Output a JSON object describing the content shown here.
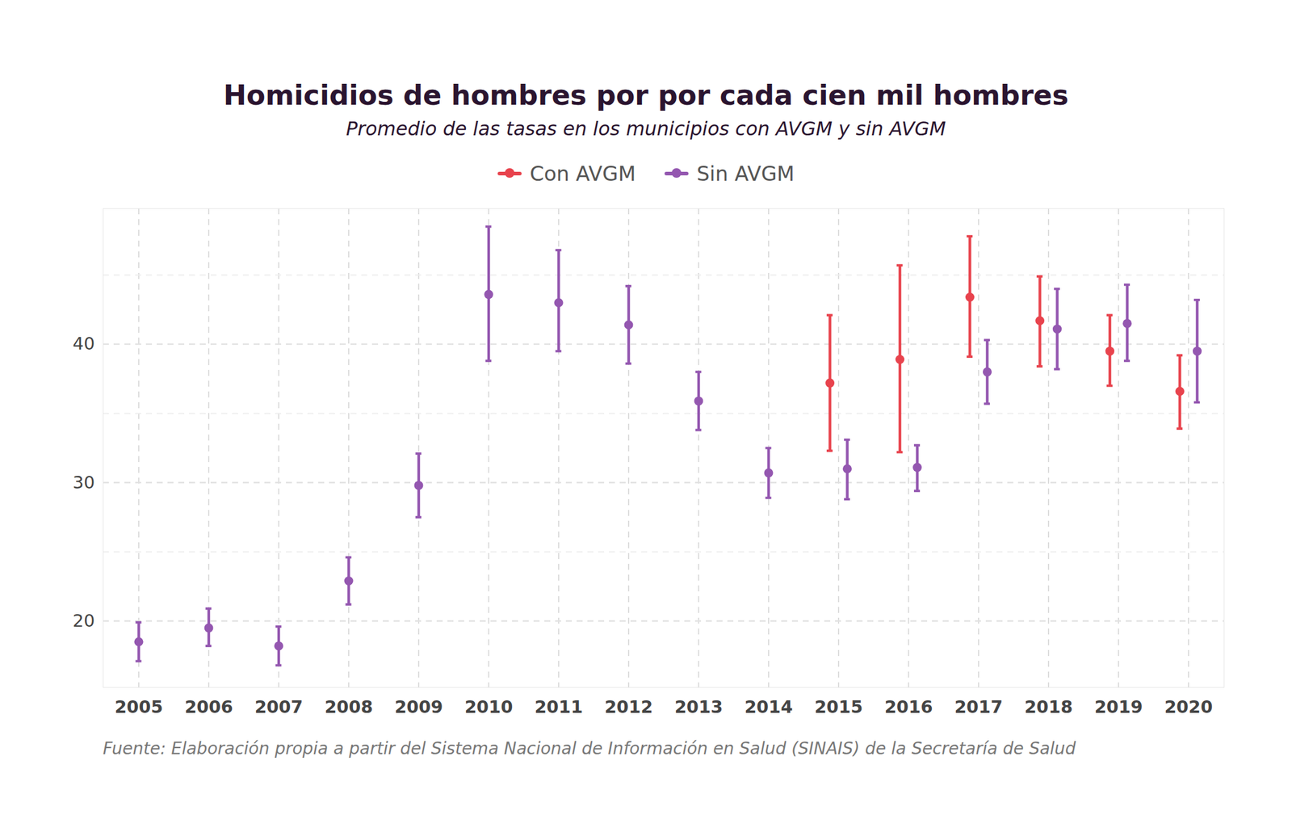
{
  "chart_data": {
    "type": "errorbar",
    "title": "Homicidios de hombres por por cada cien mil hombres",
    "subtitle": "Promedio de las tasas en los municipios con AVGM y sin AVGM",
    "caption": "Fuente: Elaboración propia a partir del Sistema Nacional de Información en Salud (SINAIS) de la Secretaría de Salud",
    "categories": [
      "2005",
      "2006",
      "2007",
      "2008",
      "2009",
      "2010",
      "2011",
      "2012",
      "2013",
      "2014",
      "2015",
      "2016",
      "2017",
      "2018",
      "2019",
      "2020"
    ],
    "series": [
      {
        "name": "Con AVGM",
        "color": "#e8434d",
        "values": [
          null,
          null,
          null,
          null,
          null,
          null,
          null,
          null,
          null,
          null,
          37.2,
          38.9,
          43.4,
          41.7,
          39.5,
          36.6
        ],
        "lower": [
          null,
          null,
          null,
          null,
          null,
          null,
          null,
          null,
          null,
          null,
          32.3,
          32.2,
          39.1,
          38.4,
          37.0,
          33.9
        ],
        "upper": [
          null,
          null,
          null,
          null,
          null,
          null,
          null,
          null,
          null,
          null,
          42.1,
          45.7,
          47.8,
          44.9,
          42.1,
          39.2
        ]
      },
      {
        "name": "Sin AVGM",
        "color": "#9457b0",
        "values": [
          18.5,
          19.5,
          18.2,
          22.9,
          29.8,
          43.6,
          43.0,
          41.4,
          35.9,
          30.7,
          31.0,
          31.1,
          38.0,
          41.1,
          41.5,
          39.5
        ],
        "lower": [
          17.1,
          18.2,
          16.8,
          21.2,
          27.5,
          38.8,
          39.5,
          38.6,
          33.8,
          28.9,
          28.8,
          29.4,
          35.7,
          38.2,
          38.8,
          35.8
        ],
        "upper": [
          19.9,
          20.9,
          19.6,
          24.6,
          32.1,
          48.5,
          46.8,
          44.2,
          38.0,
          32.5,
          33.1,
          32.7,
          40.3,
          44.0,
          44.3,
          43.2
        ]
      }
    ],
    "ylim": [
      15.2,
      49.8
    ],
    "yticks": [
      20,
      30,
      40
    ],
    "grid": true,
    "legend": "top"
  }
}
